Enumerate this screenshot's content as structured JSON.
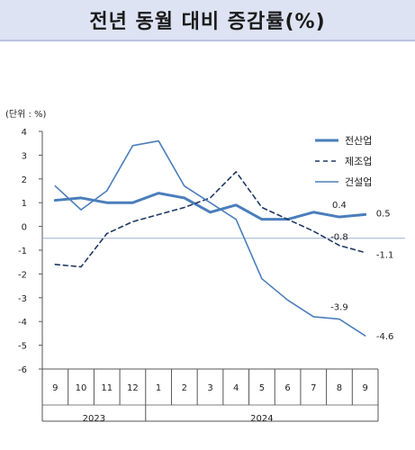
{
  "page": {
    "title": "전년 동월 대비 증감률(%)"
  },
  "chart_data": {
    "type": "line",
    "title": "전년 동월 대비 증감률(%)",
    "unit_label": "(단위 : %)",
    "categories": [
      "9",
      "10",
      "11",
      "12",
      "1",
      "2",
      "3",
      "4",
      "5",
      "6",
      "7",
      "8",
      "9"
    ],
    "year_groups": [
      {
        "label": "2023",
        "start": 0,
        "end": 3
      },
      {
        "label": "2024",
        "start": 4,
        "end": 12
      }
    ],
    "ylim": [
      -6,
      4
    ],
    "yticks": [
      "4",
      "3",
      "2",
      "1",
      "0",
      "-1",
      "-2",
      "-3",
      "-4",
      "-5",
      "-6"
    ],
    "reference_line": -0.5,
    "legend_position": "top-right",
    "series": [
      {
        "name": "전산업",
        "style": "solid-thick",
        "color": "#4a7ebb",
        "values": [
          1.1,
          1.2,
          1.0,
          1.0,
          1.4,
          1.2,
          0.6,
          0.9,
          0.3,
          0.3,
          0.6,
          0.4,
          0.5
        ]
      },
      {
        "name": "제조업",
        "style": "dashed",
        "color": "#1f3864",
        "values": [
          -1.6,
          -1.7,
          -0.3,
          0.2,
          0.5,
          0.8,
          1.2,
          2.3,
          0.8,
          0.3,
          -0.2,
          -0.8,
          -1.1
        ]
      },
      {
        "name": "건설업",
        "style": "solid-thin",
        "color": "#4a7ebb",
        "values": [
          1.7,
          0.7,
          1.5,
          3.4,
          3.6,
          1.7,
          1.0,
          0.3,
          -2.2,
          -3.1,
          -3.8,
          -3.9,
          -4.6
        ]
      }
    ],
    "data_labels": [
      {
        "series": 0,
        "index": 11,
        "text": "0.4"
      },
      {
        "series": 0,
        "index": 12,
        "text": "0.5"
      },
      {
        "series": 1,
        "index": 11,
        "text": "-0.8"
      },
      {
        "series": 1,
        "index": 12,
        "text": "-1.1"
      },
      {
        "series": 2,
        "index": 11,
        "text": "-3.9"
      },
      {
        "series": 2,
        "index": 12,
        "text": "-4.6"
      }
    ]
  }
}
